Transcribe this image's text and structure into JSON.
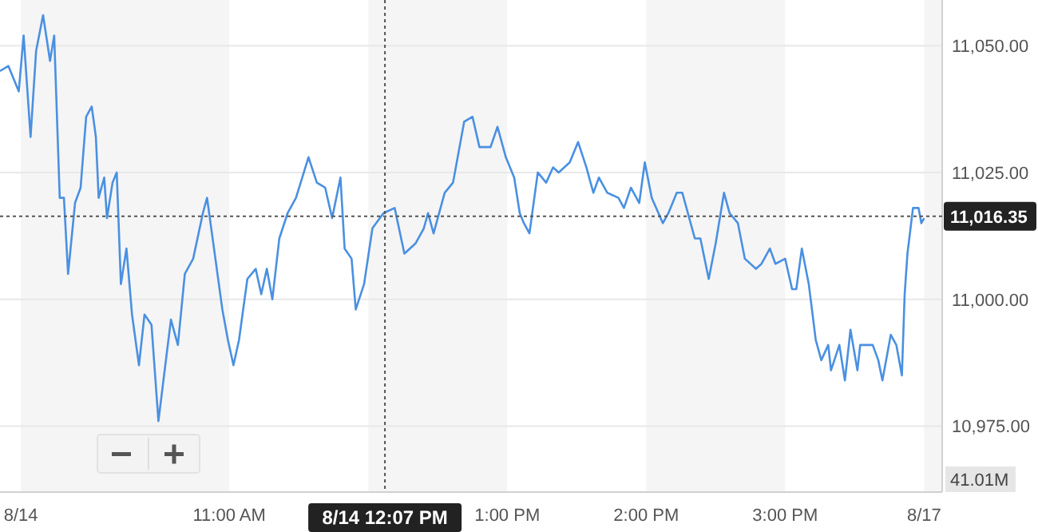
{
  "chart_data": {
    "type": "line",
    "x": [
      9.35,
      9.41,
      9.485,
      9.52,
      9.57,
      9.61,
      9.66,
      9.71,
      9.74,
      9.78,
      9.81,
      9.84,
      9.89,
      9.93,
      9.97,
      10.01,
      10.04,
      10.06,
      10.1,
      10.12,
      10.16,
      10.19,
      10.22,
      10.26,
      10.3,
      10.35,
      10.39,
      10.44,
      10.49,
      10.58,
      10.63,
      10.68,
      10.74,
      10.81,
      10.84,
      10.89,
      10.95,
      10.99,
      11.03,
      11.07,
      11.13,
      11.19,
      11.23,
      11.27,
      11.31,
      11.36,
      11.42,
      11.48,
      11.57,
      11.63,
      11.69,
      11.74,
      11.8,
      11.83,
      11.88,
      11.91,
      11.97,
      12.03,
      12.11,
      12.19,
      12.26,
      12.34,
      12.4,
      12.43,
      12.47,
      12.55,
      12.61,
      12.69,
      12.75,
      12.8,
      12.88,
      12.93,
      12.99,
      13.05,
      13.09,
      13.12,
      13.16,
      13.22,
      13.28,
      13.33,
      13.37,
      13.45,
      13.51,
      13.57,
      13.62,
      13.66,
      13.72,
      13.8,
      13.84,
      13.89,
      13.95,
      13.99,
      14.04,
      14.12,
      14.16,
      14.22,
      14.26,
      14.31,
      14.35,
      14.39,
      14.45,
      14.5,
      14.56,
      14.6,
      14.66,
      14.71,
      14.79,
      14.83,
      14.89,
      14.93,
      15,
      15.05,
      15.08,
      15.12,
      15.17,
      15.22,
      15.26,
      15.31,
      15.33,
      15.39,
      15.43,
      15.47,
      15.52,
      15.54,
      15.63,
      15.67,
      15.7,
      15.76,
      15.8,
      15.84,
      15.86,
      15.88,
      15.92,
      15.96,
      15.98,
      16
    ],
    "series": [
      {
        "color": "#4a90e2",
        "values": [
          11045,
          11046,
          11041,
          11052,
          11032,
          11049,
          11056,
          11047,
          11052,
          11020,
          11020,
          11005,
          11019,
          11022,
          11036,
          11038,
          11032,
          11020,
          11024,
          11016,
          11023,
          11025,
          11003,
          11010,
          10997,
          10987,
          10997,
          10995,
          10976,
          10996,
          10991,
          11005,
          11008,
          11017,
          11020,
          11010,
          10998,
          10992,
          10987,
          10992,
          11004,
          11006,
          11001,
          11006,
          11000,
          11012,
          11017,
          11020,
          11028,
          11023,
          11022,
          11016,
          11024,
          11010,
          11008,
          10998,
          11003,
          11014,
          11017,
          11018,
          11009,
          11011,
          11014,
          11017,
          11013,
          11021,
          11023,
          11035,
          11036,
          11030,
          11030,
          11034,
          11028,
          11024,
          11017,
          11015,
          11013,
          11025,
          11023,
          11026,
          11025,
          11027,
          11031,
          11026,
          11021,
          11024,
          11021,
          11020,
          11018,
          11022,
          11019,
          11027,
          11020,
          11015,
          11017,
          11021,
          11021,
          11016,
          11012,
          11012,
          11004,
          11011,
          11021,
          11017,
          11015,
          11008,
          11006,
          11007,
          11010,
          11007,
          11008,
          11002,
          11002,
          11010,
          11003,
          10992,
          10988,
          10991,
          10986,
          10991,
          10984,
          10994,
          10986,
          10991,
          10991,
          10988,
          10984,
          10993,
          10991,
          10985,
          11001,
          11009,
          11018,
          11018,
          11015,
          11016
        ]
      }
    ],
    "xlim": [
      9.35,
      16.13
    ],
    "ylim": [
      10962,
      11059
    ],
    "xticks": [
      {
        "value": 9.5,
        "label": "8/14"
      },
      {
        "value": 11,
        "label": "11:00 AM"
      },
      {
        "value": 13,
        "label": "1:00 PM"
      },
      {
        "value": 14,
        "label": "2:00 PM"
      },
      {
        "value": 15,
        "label": "3:00 PM"
      },
      {
        "value": 16,
        "label": "8/17"
      }
    ],
    "yticks": [
      {
        "value": 10975,
        "label": "10,975.00"
      },
      {
        "value": 11000,
        "label": "11,000.00"
      },
      {
        "value": 11025,
        "label": "11,025.00"
      },
      {
        "value": 11050,
        "label": "11,050.00"
      }
    ],
    "grid": "y",
    "marker": "none",
    "line_style": "solid",
    "ref_lines": [
      {
        "axis": "y",
        "value": 11016.35,
        "label": "11,016.35",
        "line_style": "dotted",
        "color": "#555555"
      },
      {
        "axis": "x",
        "value": 12.12,
        "label": "8/14 12:07 PM",
        "line_style": "dotted",
        "color": "#555555"
      }
    ],
    "bands": [
      {
        "axis": "x",
        "from": 9.5,
        "to": 11,
        "color": "#f5f5f5"
      },
      {
        "axis": "x",
        "from": 12,
        "to": 13,
        "color": "#f5f5f5"
      },
      {
        "axis": "x",
        "from": 14,
        "to": 15,
        "color": "#f5f5f5"
      },
      {
        "axis": "x",
        "from": 16,
        "to": 16.13,
        "color": "#f5f5f5"
      }
    ],
    "annotations": [
      "41.01M"
    ]
  }
}
